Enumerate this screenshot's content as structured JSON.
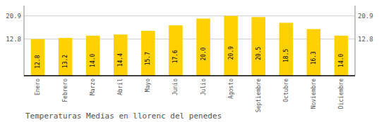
{
  "chart_data": {
    "type": "bar",
    "title": "Temperaturas Medias en llorenc del penedes",
    "categories": [
      "Enero",
      "Febrero",
      "Marzo",
      "Abril",
      "Mayo",
      "Junio",
      "Julio",
      "Agosto",
      "Septiembre",
      "Octubre",
      "Noviembre",
      "Diciembre"
    ],
    "values": [
      12.8,
      13.2,
      14.0,
      14.4,
      15.7,
      17.6,
      20.0,
      20.9,
      20.5,
      18.5,
      16.3,
      14.0
    ],
    "value_labels": [
      "12.8",
      "13.2",
      "14.0",
      "14.4",
      "15.7",
      "17.6",
      "20.0",
      "20.9",
      "20.5",
      "18.5",
      "16.3",
      "14.0"
    ],
    "color": "#FFD100",
    "ylim": [
      0,
      24.5
    ],
    "yticks": [
      12.8,
      20.9
    ],
    "y2lim": [
      0,
      24.5
    ],
    "y2ticks": [
      12.8,
      20.9
    ],
    "grid": true,
    "data_labels": true
  }
}
